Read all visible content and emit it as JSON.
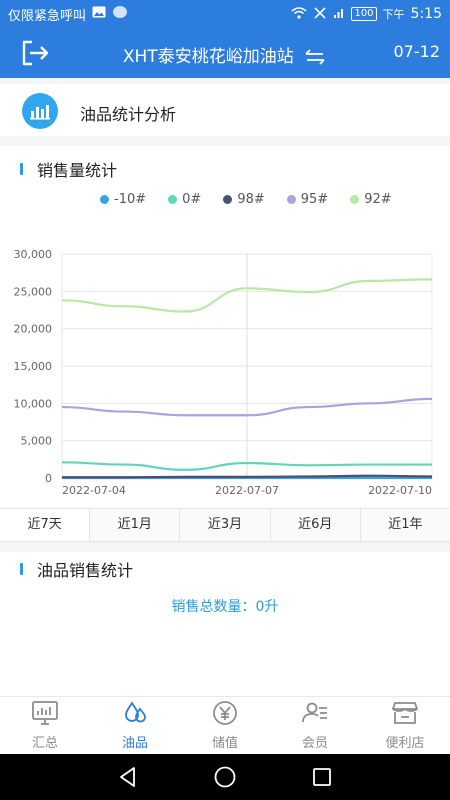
{
  "status_bar": {
    "carrier_text": "仅限紧急呼叫",
    "battery": "100",
    "time_prefix": "下午",
    "time": "5:15",
    "icons": [
      "image-icon",
      "bubble-icon",
      "wifi-icon",
      "no-sim-icon",
      "signal-icon",
      "battery-icon"
    ]
  },
  "header": {
    "station_name": "XHT泰安桃花峪加油站",
    "date": "07-12",
    "icons": [
      "logout-icon",
      "swap-arrows-icon"
    ]
  },
  "section": {
    "title": "油品统计分析",
    "icon": "bar-chart-icon"
  },
  "sales_volume": {
    "title": "销售量统计"
  },
  "chart_data": {
    "type": "line",
    "x": [
      "2022-07-04",
      "2022-07-05",
      "2022-07-06",
      "2022-07-07",
      "2022-07-08",
      "2022-07-09",
      "2022-07-10"
    ],
    "x_tick_labels": [
      "2022-07-04",
      "2022-07-07",
      "2022-07-10"
    ],
    "y_tick_labels": [
      "0",
      "5,000",
      "10,000",
      "15,000",
      "20,000",
      "25,000",
      "30,000"
    ],
    "ylim": [
      0,
      30000
    ],
    "grid": true,
    "legend_position": "top",
    "series": [
      {
        "name": "-10#",
        "color": "#3ba2e0",
        "values": [
          0,
          0,
          0,
          0,
          0,
          0,
          0
        ]
      },
      {
        "name": "0#",
        "color": "#5fd6b5",
        "values": [
          2100,
          1800,
          1100,
          2000,
          1700,
          1800,
          1800
        ]
      },
      {
        "name": "98#",
        "color": "#4a5070",
        "values": [
          100,
          100,
          150,
          150,
          200,
          300,
          200
        ]
      },
      {
        "name": "95#",
        "color": "#a7a4e0",
        "values": [
          9500,
          8900,
          8400,
          8400,
          9500,
          10000,
          10600
        ]
      },
      {
        "name": "92#",
        "color": "#b9e8a4",
        "values": [
          23800,
          23000,
          22300,
          25400,
          24900,
          26400,
          26600
        ]
      }
    ]
  },
  "range_tabs": {
    "active_index": 0,
    "items": [
      "近7天",
      "近1月",
      "近3月",
      "近6月",
      "近1年"
    ]
  },
  "product_sales": {
    "title": "油品销售统计",
    "total_line": "销售总数量：0升"
  },
  "bottom_nav": {
    "active_index": 1,
    "items": [
      {
        "label": "汇总",
        "icon": "monitor-icon"
      },
      {
        "label": "油品",
        "icon": "drops-icon"
      },
      {
        "label": "储值",
        "icon": "yen-icon"
      },
      {
        "label": "会员",
        "icon": "member-icon"
      },
      {
        "label": "便利店",
        "icon": "store-icon"
      }
    ]
  },
  "system_nav": {
    "icons": [
      "back-icon",
      "home-icon",
      "recents-icon"
    ]
  }
}
